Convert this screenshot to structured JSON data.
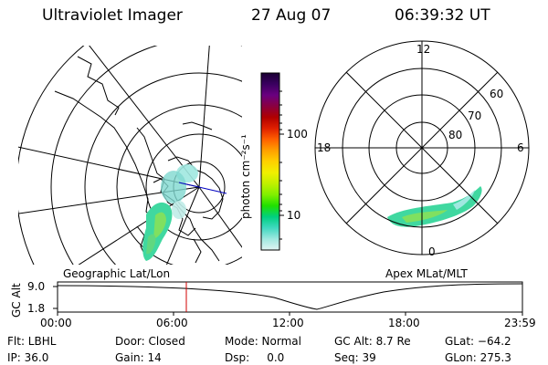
{
  "header": {
    "instrument": "Ultraviolet Imager",
    "date": "27 Aug 07",
    "time": "06:39:32 UT"
  },
  "colorbar": {
    "unit_label": "photon cm⁻²s⁻¹",
    "ticks": [
      "100",
      "10"
    ],
    "colors": [
      "#1a0033",
      "#3a0060",
      "#6a0080",
      "#8a0040",
      "#b00000",
      "#e02000",
      "#ff6000",
      "#ffa000",
      "#ffd000",
      "#f0f000",
      "#c0f000",
      "#80f000",
      "#20e000",
      "#00d080",
      "#40d8c0",
      "#a0e8e0",
      "#e0f4f4"
    ]
  },
  "left_panel": {
    "label": "Geographic Lat/Lon"
  },
  "right_panel": {
    "label": "Apex MLat/MLT",
    "mlt_labels": {
      "top": "12",
      "left": "18",
      "right": "6",
      "bottom": "0"
    },
    "lat_labels": [
      "60",
      "70",
      "80"
    ]
  },
  "timeline": {
    "axis_label": "GC Alt",
    "y_ticks": [
      "9.0",
      "1.8"
    ],
    "x_ticks": [
      "00:00",
      "06:00",
      "12:00",
      "18:00",
      "23:59"
    ],
    "current_time_fraction": 0.277,
    "marker_color": "#d00000"
  },
  "info": {
    "flt": "Flt: LBHL",
    "door": "Door: Closed",
    "mode": "Mode: Normal",
    "gc_alt": "GC Alt: 8.7 Re",
    "glat": "GLat: −64.2",
    "ip": "IP: 36.0",
    "gain": "Gain: 14",
    "dsp": "Dsp:     0.0",
    "seq": "Seq: 39",
    "glon": "GLon: 275.3"
  }
}
